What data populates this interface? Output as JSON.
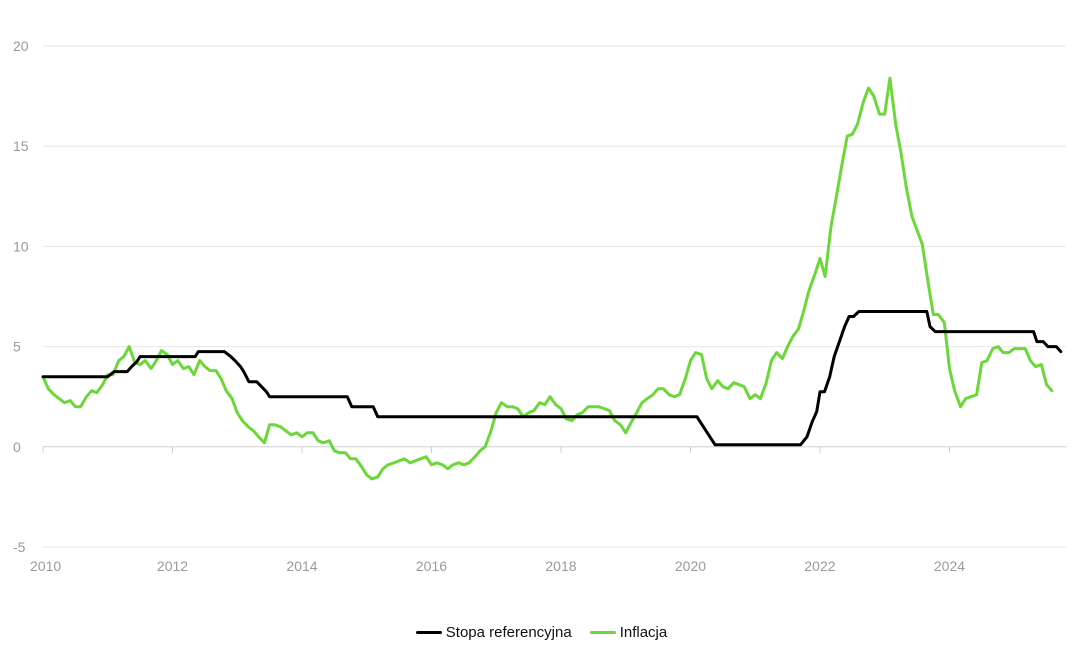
{
  "chart_data": {
    "type": "line",
    "title": "",
    "xlabel": "",
    "ylabel": "",
    "x_ticks": [
      "2010",
      "2012",
      "2014",
      "2016",
      "2018",
      "2020",
      "2022",
      "2024"
    ],
    "y_ticks": [
      "20",
      "15",
      "10",
      "5",
      "0",
      "-5"
    ],
    "xlim": [
      2010.0,
      2025.8
    ],
    "ylim": [
      -5,
      20
    ],
    "grid": "horizontal",
    "legend_position": "bottom",
    "series": [
      {
        "name": "Stopa referencyjna",
        "color": "#000000",
        "points": [
          [
            2010.0,
            3.5
          ],
          [
            2011.0,
            3.5
          ],
          [
            2011.1,
            3.75
          ],
          [
            2011.3,
            3.75
          ],
          [
            2011.37,
            4.0
          ],
          [
            2011.45,
            4.25
          ],
          [
            2011.5,
            4.5
          ],
          [
            2012.35,
            4.5
          ],
          [
            2012.4,
            4.75
          ],
          [
            2012.8,
            4.75
          ],
          [
            2012.9,
            4.5
          ],
          [
            2012.98,
            4.25
          ],
          [
            2013.05,
            4.0
          ],
          [
            2013.1,
            3.75
          ],
          [
            2013.18,
            3.25
          ],
          [
            2013.3,
            3.25
          ],
          [
            2013.45,
            2.75
          ],
          [
            2013.5,
            2.5
          ],
          [
            2014.7,
            2.5
          ],
          [
            2014.77,
            2.0
          ],
          [
            2015.1,
            2.0
          ],
          [
            2015.17,
            1.5
          ],
          [
            2020.1,
            1.5
          ],
          [
            2020.2,
            1.0
          ],
          [
            2020.3,
            0.5
          ],
          [
            2020.38,
            0.1
          ],
          [
            2021.7,
            0.1
          ],
          [
            2021.8,
            0.5
          ],
          [
            2021.88,
            1.25
          ],
          [
            2021.95,
            1.75
          ],
          [
            2022.0,
            2.75
          ],
          [
            2022.07,
            2.75
          ],
          [
            2022.15,
            3.5
          ],
          [
            2022.22,
            4.5
          ],
          [
            2022.3,
            5.25
          ],
          [
            2022.38,
            6.0
          ],
          [
            2022.45,
            6.5
          ],
          [
            2022.52,
            6.5
          ],
          [
            2022.6,
            6.75
          ],
          [
            2023.65,
            6.75
          ],
          [
            2023.7,
            6.0
          ],
          [
            2023.78,
            5.75
          ],
          [
            2025.3,
            5.75
          ],
          [
            2025.35,
            5.25
          ],
          [
            2025.45,
            5.25
          ],
          [
            2025.52,
            5.0
          ],
          [
            2025.65,
            5.0
          ],
          [
            2025.72,
            4.75
          ]
        ]
      },
      {
        "name": "Inflacja",
        "color": "#6cd739",
        "points": [
          [
            2010.0,
            3.5
          ],
          [
            2010.08,
            2.9
          ],
          [
            2010.17,
            2.6
          ],
          [
            2010.25,
            2.4
          ],
          [
            2010.33,
            2.2
          ],
          [
            2010.42,
            2.3
          ],
          [
            2010.5,
            2.0
          ],
          [
            2010.58,
            2.0
          ],
          [
            2010.67,
            2.5
          ],
          [
            2010.75,
            2.8
          ],
          [
            2010.83,
            2.7
          ],
          [
            2010.92,
            3.1
          ],
          [
            2011.0,
            3.6
          ],
          [
            2011.08,
            3.6
          ],
          [
            2011.17,
            4.3
          ],
          [
            2011.25,
            4.5
          ],
          [
            2011.33,
            5.0
          ],
          [
            2011.42,
            4.2
          ],
          [
            2011.5,
            4.1
          ],
          [
            2011.58,
            4.3
          ],
          [
            2011.67,
            3.9
          ],
          [
            2011.75,
            4.3
          ],
          [
            2011.83,
            4.8
          ],
          [
            2011.92,
            4.6
          ],
          [
            2012.0,
            4.1
          ],
          [
            2012.08,
            4.3
          ],
          [
            2012.17,
            3.9
          ],
          [
            2012.25,
            4.0
          ],
          [
            2012.33,
            3.6
          ],
          [
            2012.42,
            4.3
          ],
          [
            2012.5,
            4.0
          ],
          [
            2012.58,
            3.8
          ],
          [
            2012.67,
            3.8
          ],
          [
            2012.75,
            3.4
          ],
          [
            2012.83,
            2.8
          ],
          [
            2012.92,
            2.4
          ],
          [
            2013.0,
            1.7
          ],
          [
            2013.08,
            1.3
          ],
          [
            2013.17,
            1.0
          ],
          [
            2013.25,
            0.8
          ],
          [
            2013.33,
            0.5
          ],
          [
            2013.42,
            0.2
          ],
          [
            2013.5,
            1.1
          ],
          [
            2013.58,
            1.1
          ],
          [
            2013.67,
            1.0
          ],
          [
            2013.75,
            0.8
          ],
          [
            2013.83,
            0.6
          ],
          [
            2013.92,
            0.7
          ],
          [
            2014.0,
            0.5
          ],
          [
            2014.08,
            0.7
          ],
          [
            2014.17,
            0.7
          ],
          [
            2014.25,
            0.3
          ],
          [
            2014.33,
            0.2
          ],
          [
            2014.42,
            0.3
          ],
          [
            2014.5,
            -0.2
          ],
          [
            2014.58,
            -0.3
          ],
          [
            2014.67,
            -0.3
          ],
          [
            2014.75,
            -0.6
          ],
          [
            2014.83,
            -0.6
          ],
          [
            2014.92,
            -1.0
          ],
          [
            2015.0,
            -1.4
          ],
          [
            2015.08,
            -1.6
          ],
          [
            2015.17,
            -1.5
          ],
          [
            2015.25,
            -1.1
          ],
          [
            2015.33,
            -0.9
          ],
          [
            2015.42,
            -0.8
          ],
          [
            2015.5,
            -0.7
          ],
          [
            2015.58,
            -0.6
          ],
          [
            2015.67,
            -0.8
          ],
          [
            2015.75,
            -0.7
          ],
          [
            2015.83,
            -0.6
          ],
          [
            2015.92,
            -0.5
          ],
          [
            2016.0,
            -0.9
          ],
          [
            2016.08,
            -0.8
          ],
          [
            2016.17,
            -0.9
          ],
          [
            2016.25,
            -1.1
          ],
          [
            2016.33,
            -0.9
          ],
          [
            2016.42,
            -0.8
          ],
          [
            2016.5,
            -0.9
          ],
          [
            2016.58,
            -0.8
          ],
          [
            2016.67,
            -0.5
          ],
          [
            2016.75,
            -0.2
          ],
          [
            2016.83,
            0.0
          ],
          [
            2016.92,
            0.8
          ],
          [
            2017.0,
            1.7
          ],
          [
            2017.08,
            2.2
          ],
          [
            2017.17,
            2.0
          ],
          [
            2017.25,
            2.0
          ],
          [
            2017.33,
            1.9
          ],
          [
            2017.42,
            1.5
          ],
          [
            2017.5,
            1.7
          ],
          [
            2017.58,
            1.8
          ],
          [
            2017.67,
            2.2
          ],
          [
            2017.75,
            2.1
          ],
          [
            2017.83,
            2.5
          ],
          [
            2017.92,
            2.1
          ],
          [
            2018.0,
            1.9
          ],
          [
            2018.08,
            1.4
          ],
          [
            2018.17,
            1.3
          ],
          [
            2018.25,
            1.6
          ],
          [
            2018.33,
            1.7
          ],
          [
            2018.42,
            2.0
          ],
          [
            2018.5,
            2.0
          ],
          [
            2018.58,
            2.0
          ],
          [
            2018.67,
            1.9
          ],
          [
            2018.75,
            1.8
          ],
          [
            2018.83,
            1.3
          ],
          [
            2018.92,
            1.1
          ],
          [
            2019.0,
            0.7
          ],
          [
            2019.08,
            1.2
          ],
          [
            2019.17,
            1.7
          ],
          [
            2019.25,
            2.2
          ],
          [
            2019.33,
            2.4
          ],
          [
            2019.42,
            2.6
          ],
          [
            2019.5,
            2.9
          ],
          [
            2019.58,
            2.9
          ],
          [
            2019.67,
            2.6
          ],
          [
            2019.75,
            2.5
          ],
          [
            2019.83,
            2.6
          ],
          [
            2019.92,
            3.4
          ],
          [
            2020.0,
            4.3
          ],
          [
            2020.08,
            4.7
          ],
          [
            2020.17,
            4.6
          ],
          [
            2020.25,
            3.4
          ],
          [
            2020.33,
            2.9
          ],
          [
            2020.42,
            3.3
          ],
          [
            2020.5,
            3.0
          ],
          [
            2020.58,
            2.9
          ],
          [
            2020.67,
            3.2
          ],
          [
            2020.75,
            3.1
          ],
          [
            2020.83,
            3.0
          ],
          [
            2020.92,
            2.4
          ],
          [
            2021.0,
            2.6
          ],
          [
            2021.08,
            2.4
          ],
          [
            2021.17,
            3.2
          ],
          [
            2021.25,
            4.3
          ],
          [
            2021.33,
            4.7
          ],
          [
            2021.42,
            4.4
          ],
          [
            2021.5,
            5.0
          ],
          [
            2021.58,
            5.5
          ],
          [
            2021.67,
            5.9
          ],
          [
            2021.75,
            6.8
          ],
          [
            2021.83,
            7.8
          ],
          [
            2021.92,
            8.6
          ],
          [
            2022.0,
            9.4
          ],
          [
            2022.08,
            8.5
          ],
          [
            2022.17,
            11.0
          ],
          [
            2022.25,
            12.4
          ],
          [
            2022.33,
            13.9
          ],
          [
            2022.42,
            15.5
          ],
          [
            2022.5,
            15.6
          ],
          [
            2022.58,
            16.1
          ],
          [
            2022.67,
            17.2
          ],
          [
            2022.75,
            17.9
          ],
          [
            2022.83,
            17.5
          ],
          [
            2022.92,
            16.6
          ],
          [
            2023.0,
            16.6
          ],
          [
            2023.08,
            18.4
          ],
          [
            2023.17,
            16.1
          ],
          [
            2023.25,
            14.7
          ],
          [
            2023.33,
            13.0
          ],
          [
            2023.42,
            11.5
          ],
          [
            2023.5,
            10.8
          ],
          [
            2023.58,
            10.1
          ],
          [
            2023.67,
            8.2
          ],
          [
            2023.75,
            6.6
          ],
          [
            2023.83,
            6.6
          ],
          [
            2023.92,
            6.2
          ],
          [
            2024.0,
            3.9
          ],
          [
            2024.08,
            2.8
          ],
          [
            2024.17,
            2.0
          ],
          [
            2024.25,
            2.4
          ],
          [
            2024.33,
            2.5
          ],
          [
            2024.42,
            2.6
          ],
          [
            2024.5,
            4.2
          ],
          [
            2024.58,
            4.3
          ],
          [
            2024.67,
            4.9
          ],
          [
            2024.75,
            5.0
          ],
          [
            2024.83,
            4.7
          ],
          [
            2024.92,
            4.7
          ],
          [
            2025.0,
            4.9
          ],
          [
            2025.08,
            4.9
          ],
          [
            2025.17,
            4.9
          ],
          [
            2025.25,
            4.3
          ],
          [
            2025.33,
            4.0
          ],
          [
            2025.42,
            4.1
          ],
          [
            2025.5,
            3.1
          ],
          [
            2025.58,
            2.8
          ]
        ]
      }
    ]
  }
}
